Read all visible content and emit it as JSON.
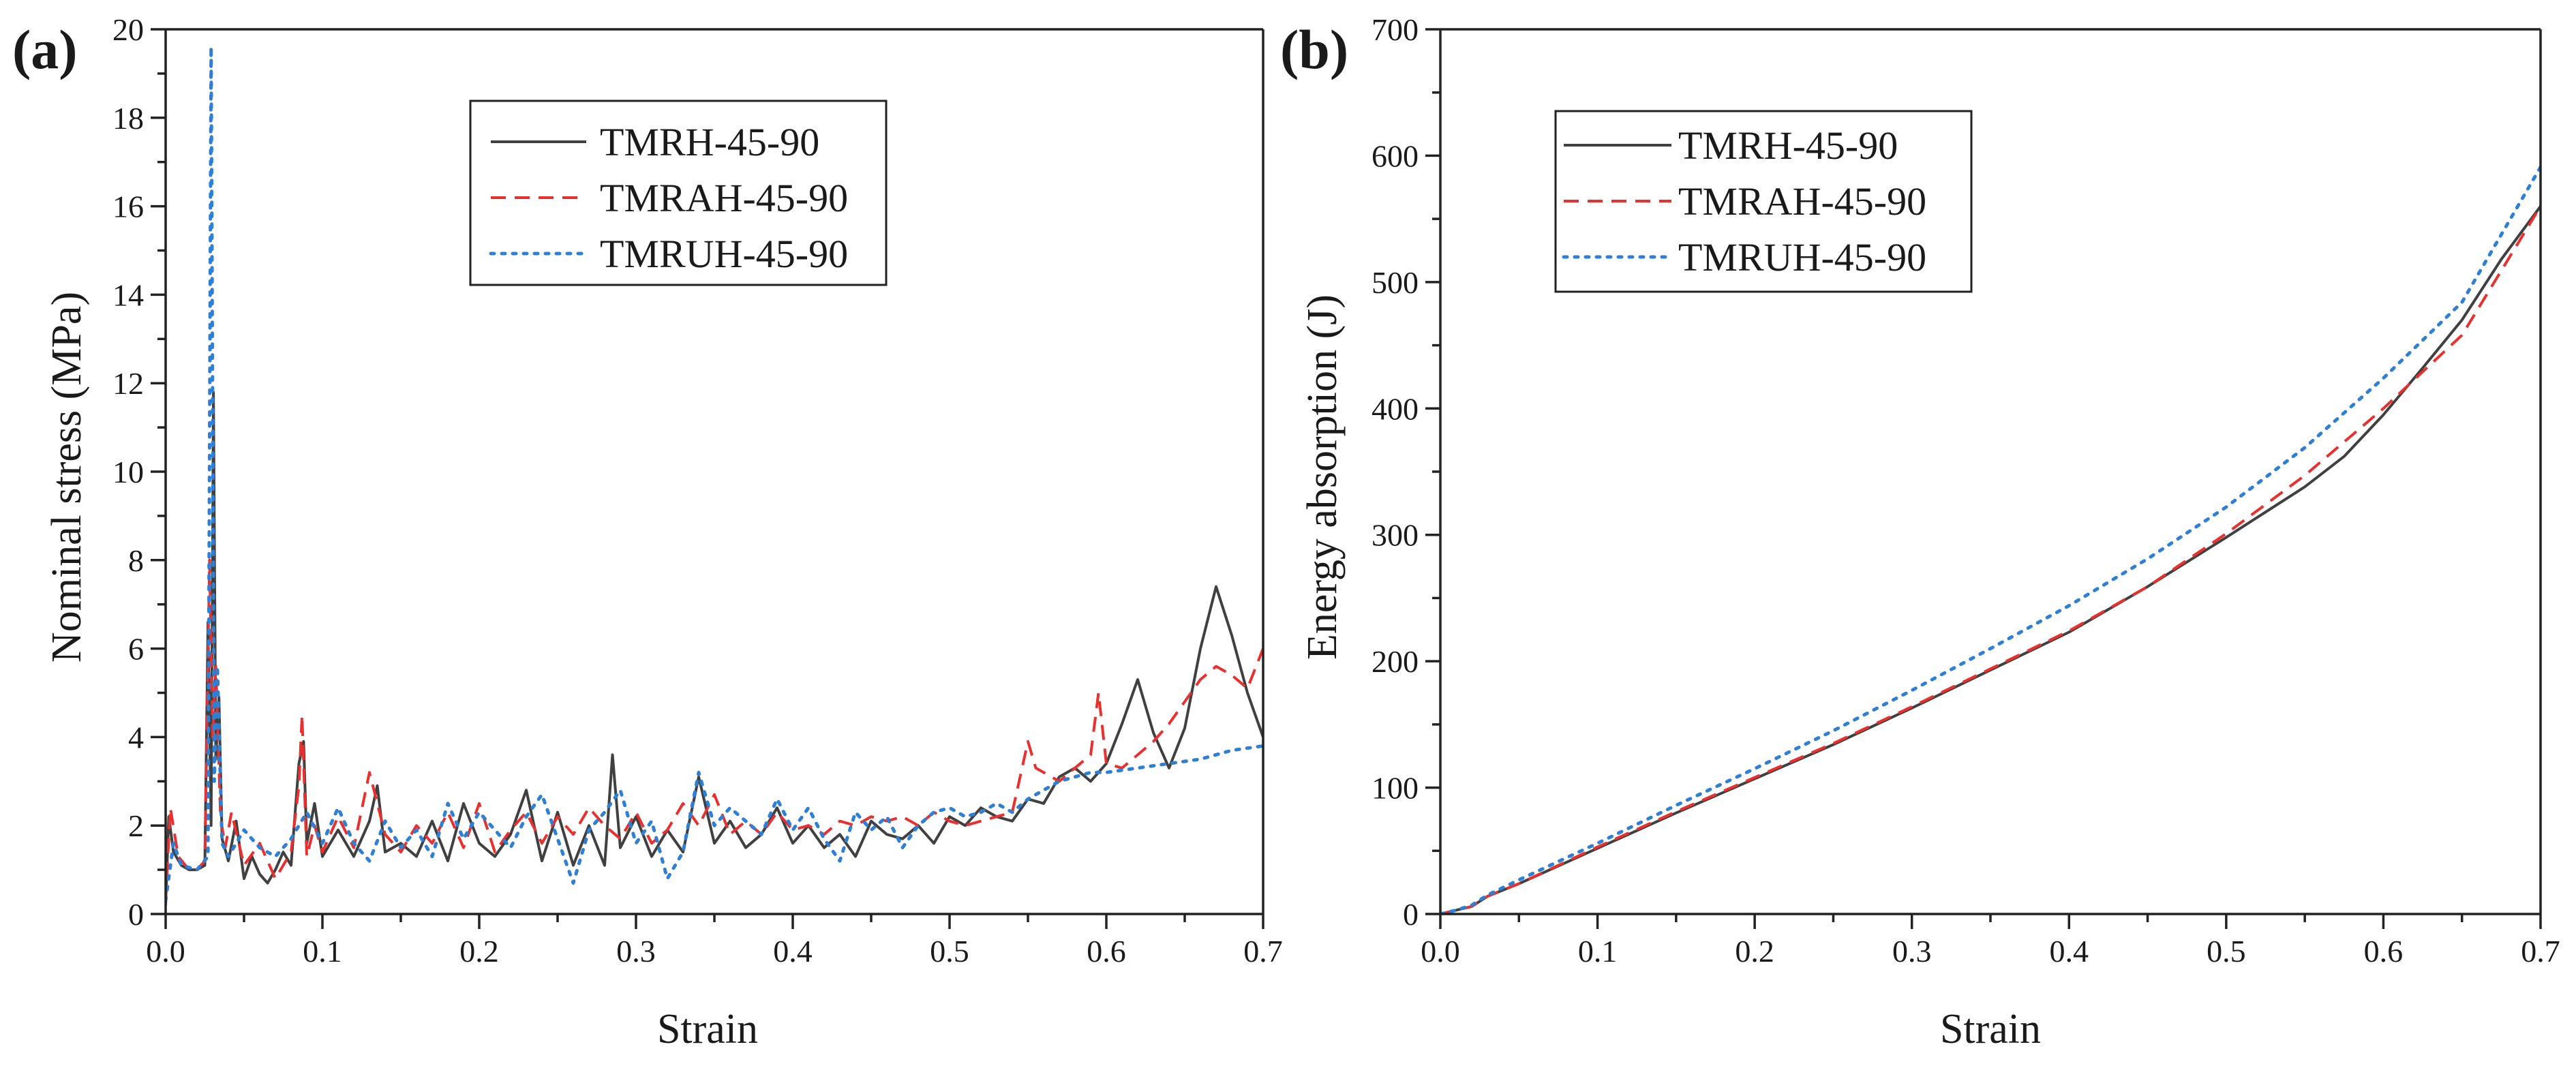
{
  "chart_data": [
    {
      "type": "line",
      "panel_label": "(a)",
      "xlabel": "Strain",
      "ylabel": "Nominal stress (MPa)",
      "xlim": [
        0,
        0.7
      ],
      "ylim": [
        0,
        20
      ],
      "xticks": [
        0.0,
        0.1,
        0.2,
        0.3,
        0.4,
        0.5,
        0.6,
        0.7
      ],
      "xtick_labels": [
        "0.0",
        "0.1",
        "0.2",
        "0.3",
        "0.4",
        "0.5",
        "0.6",
        "0.7"
      ],
      "yticks": [
        0,
        2,
        4,
        6,
        8,
        10,
        12,
        14,
        16,
        18,
        20
      ],
      "ytick_labels": [
        "0",
        "2",
        "4",
        "6",
        "8",
        "10",
        "12",
        "14",
        "16",
        "18",
        "20"
      ],
      "grid": false,
      "legend_position": "top-center",
      "series": [
        {
          "name": "TMRH-45-90",
          "color": "#404040",
          "dash": "solid",
          "x": [
            0,
            0.002,
            0.005,
            0.01,
            0.015,
            0.02,
            0.025,
            0.027,
            0.029,
            0.0305,
            0.032,
            0.034,
            0.036,
            0.04,
            0.045,
            0.05,
            0.055,
            0.06,
            0.065,
            0.07,
            0.075,
            0.08,
            0.085,
            0.088,
            0.09,
            0.095,
            0.1,
            0.11,
            0.12,
            0.13,
            0.135,
            0.14,
            0.15,
            0.16,
            0.17,
            0.18,
            0.19,
            0.2,
            0.21,
            0.22,
            0.23,
            0.24,
            0.25,
            0.26,
            0.27,
            0.28,
            0.285,
            0.29,
            0.3,
            0.31,
            0.32,
            0.33,
            0.34,
            0.35,
            0.36,
            0.37,
            0.38,
            0.39,
            0.4,
            0.41,
            0.42,
            0.43,
            0.44,
            0.45,
            0.46,
            0.47,
            0.48,
            0.49,
            0.5,
            0.51,
            0.52,
            0.53,
            0.54,
            0.55,
            0.56,
            0.57,
            0.58,
            0.59,
            0.6,
            0.61,
            0.62,
            0.63,
            0.64,
            0.65,
            0.66,
            0.67,
            0.68,
            0.69,
            0.7
          ],
          "y": [
            0.2,
            2.2,
            1.4,
            1.1,
            1.0,
            1.0,
            1.1,
            6.6,
            2.0,
            11.8,
            3.5,
            4.9,
            1.7,
            1.2,
            2.1,
            0.8,
            1.3,
            0.9,
            0.7,
            1.0,
            1.4,
            1.1,
            3.4,
            3.9,
            1.6,
            2.5,
            1.3,
            1.9,
            1.3,
            2.1,
            2.9,
            1.4,
            1.6,
            1.3,
            2.1,
            1.2,
            2.5,
            1.6,
            1.3,
            1.8,
            2.8,
            1.2,
            2.3,
            1.1,
            2.0,
            1.1,
            3.6,
            1.5,
            2.2,
            1.3,
            1.9,
            1.4,
            3.1,
            1.6,
            2.1,
            1.5,
            1.8,
            2.4,
            1.6,
            2.0,
            1.5,
            1.8,
            1.3,
            2.1,
            1.8,
            1.7,
            2.0,
            1.6,
            2.2,
            2.0,
            2.4,
            2.2,
            2.1,
            2.6,
            2.5,
            3.1,
            3.3,
            3.0,
            3.4,
            4.3,
            5.3,
            4.1,
            3.3,
            4.2,
            6.0,
            7.4,
            6.3,
            5.0,
            4.0
          ]
        },
        {
          "name": "TMRAH-45-90",
          "color": "#e8302f",
          "dash": "dashed",
          "x": [
            0,
            0.003,
            0.008,
            0.015,
            0.02,
            0.025,
            0.028,
            0.03,
            0.032,
            0.035,
            0.038,
            0.042,
            0.05,
            0.06,
            0.07,
            0.08,
            0.085,
            0.087,
            0.09,
            0.095,
            0.1,
            0.11,
            0.12,
            0.13,
            0.14,
            0.15,
            0.16,
            0.17,
            0.18,
            0.19,
            0.2,
            0.21,
            0.22,
            0.23,
            0.24,
            0.25,
            0.26,
            0.27,
            0.28,
            0.29,
            0.3,
            0.31,
            0.32,
            0.33,
            0.34,
            0.35,
            0.36,
            0.37,
            0.38,
            0.39,
            0.4,
            0.41,
            0.42,
            0.43,
            0.44,
            0.45,
            0.46,
            0.47,
            0.48,
            0.49,
            0.5,
            0.51,
            0.52,
            0.53,
            0.54,
            0.55,
            0.555,
            0.56,
            0.57,
            0.58,
            0.59,
            0.595,
            0.6,
            0.61,
            0.62,
            0.63,
            0.64,
            0.65,
            0.66,
            0.67,
            0.68,
            0.69,
            0.7
          ],
          "y": [
            0.3,
            2.4,
            1.3,
            1.0,
            1.0,
            1.2,
            8.0,
            4.0,
            5.6,
            2.2,
            1.5,
            2.3,
            1.1,
            1.6,
            0.8,
            1.4,
            2.9,
            4.5,
            1.3,
            2.0,
            1.4,
            2.2,
            1.5,
            3.2,
            1.8,
            1.4,
            2.0,
            1.6,
            2.3,
            1.5,
            2.5,
            1.4,
            1.9,
            2.3,
            1.6,
            2.2,
            1.8,
            2.4,
            2.0,
            1.7,
            2.3,
            1.6,
            1.9,
            2.5,
            2.0,
            2.7,
            1.8,
            2.1,
            1.8,
            2.3,
            1.9,
            2.0,
            1.8,
            2.1,
            2.0,
            2.2,
            2.1,
            2.2,
            2.0,
            2.3,
            2.1,
            2.0,
            2.1,
            2.2,
            2.3,
            3.9,
            3.3,
            3.2,
            3.0,
            3.3,
            3.6,
            5.0,
            3.4,
            3.3,
            3.6,
            3.9,
            4.3,
            4.8,
            5.3,
            5.6,
            5.4,
            5.1,
            6.0
          ]
        },
        {
          "name": "TMRUH-45-90",
          "color": "#2f7fd4",
          "dash": "dotted",
          "x": [
            0,
            0.005,
            0.01,
            0.02,
            0.027,
            0.029,
            0.031,
            0.033,
            0.036,
            0.04,
            0.05,
            0.06,
            0.07,
            0.08,
            0.09,
            0.1,
            0.11,
            0.12,
            0.13,
            0.14,
            0.15,
            0.16,
            0.17,
            0.18,
            0.19,
            0.2,
            0.21,
            0.22,
            0.23,
            0.24,
            0.25,
            0.26,
            0.27,
            0.28,
            0.29,
            0.3,
            0.31,
            0.32,
            0.33,
            0.34,
            0.35,
            0.36,
            0.37,
            0.38,
            0.39,
            0.4,
            0.41,
            0.42,
            0.43,
            0.44,
            0.45,
            0.46,
            0.47,
            0.48,
            0.49,
            0.5,
            0.51,
            0.52,
            0.53,
            0.54,
            0.55,
            0.56,
            0.57,
            0.58,
            0.59,
            0.6,
            0.62,
            0.64,
            0.66,
            0.68,
            0.7
          ],
          "y": [
            0.3,
            1.6,
            1.1,
            1.0,
            1.3,
            19.6,
            3.0,
            5.6,
            1.6,
            1.3,
            1.9,
            1.5,
            1.3,
            1.7,
            2.3,
            1.6,
            2.4,
            1.6,
            1.2,
            2.1,
            1.5,
            1.9,
            1.3,
            2.5,
            1.7,
            2.3,
            1.9,
            1.5,
            2.2,
            2.7,
            1.7,
            0.7,
            1.9,
            2.3,
            2.8,
            1.6,
            2.1,
            0.8,
            1.4,
            3.2,
            2.0,
            2.4,
            2.1,
            1.8,
            2.6,
            1.9,
            2.4,
            1.7,
            1.2,
            2.3,
            1.9,
            2.2,
            1.5,
            2.0,
            2.3,
            2.4,
            2.2,
            2.3,
            2.5,
            2.3,
            2.6,
            2.8,
            3.0,
            3.1,
            3.2,
            3.2,
            3.3,
            3.4,
            3.5,
            3.7,
            3.8
          ]
        }
      ]
    },
    {
      "type": "line",
      "panel_label": "(b)",
      "xlabel": "Strain",
      "ylabel": "Energy absorption (J)",
      "xlim": [
        0,
        0.7
      ],
      "ylim": [
        0,
        700
      ],
      "xticks": [
        0.0,
        0.1,
        0.2,
        0.3,
        0.4,
        0.5,
        0.6,
        0.7
      ],
      "xtick_labels": [
        "0.0",
        "0.1",
        "0.2",
        "0.3",
        "0.4",
        "0.5",
        "0.6",
        "0.7"
      ],
      "yticks": [
        0,
        100,
        200,
        300,
        400,
        500,
        600,
        700
      ],
      "ytick_labels": [
        "0",
        "100",
        "200",
        "300",
        "400",
        "500",
        "600",
        "700"
      ],
      "grid": false,
      "legend_position": "top-left",
      "series": [
        {
          "name": "TMRH-45-90",
          "color": "#404040",
          "dash": "solid",
          "x": [
            0,
            0.01,
            0.02,
            0.03,
            0.05,
            0.1,
            0.15,
            0.2,
            0.25,
            0.3,
            0.35,
            0.4,
            0.45,
            0.5,
            0.55,
            0.575,
            0.6,
            0.625,
            0.65,
            0.675,
            0.7
          ],
          "y": [
            0,
            3,
            6,
            14,
            24,
            52,
            80,
            107,
            134,
            163,
            193,
            223,
            259,
            298,
            338,
            362,
            395,
            432,
            470,
            518,
            560
          ]
        },
        {
          "name": "TMRAH-45-90",
          "color": "#e8302f",
          "dash": "dashed",
          "x": [
            0,
            0.01,
            0.02,
            0.03,
            0.05,
            0.1,
            0.15,
            0.2,
            0.25,
            0.3,
            0.35,
            0.4,
            0.45,
            0.5,
            0.55,
            0.6,
            0.65,
            0.7
          ],
          "y": [
            0,
            3,
            6,
            14,
            24,
            53,
            81,
            108,
            135,
            164,
            194,
            224,
            259,
            301,
            347,
            400,
            458,
            560
          ]
        },
        {
          "name": "TMRUH-45-90",
          "color": "#2f7fd4",
          "dash": "dotted",
          "x": [
            0,
            0.01,
            0.02,
            0.03,
            0.05,
            0.1,
            0.15,
            0.2,
            0.25,
            0.3,
            0.35,
            0.4,
            0.45,
            0.5,
            0.55,
            0.6,
            0.65,
            0.7
          ],
          "y": [
            0,
            3,
            7,
            15,
            27,
            56,
            86,
            115,
            145,
            177,
            210,
            244,
            281,
            322,
            369,
            424,
            484,
            591
          ]
        }
      ]
    }
  ]
}
